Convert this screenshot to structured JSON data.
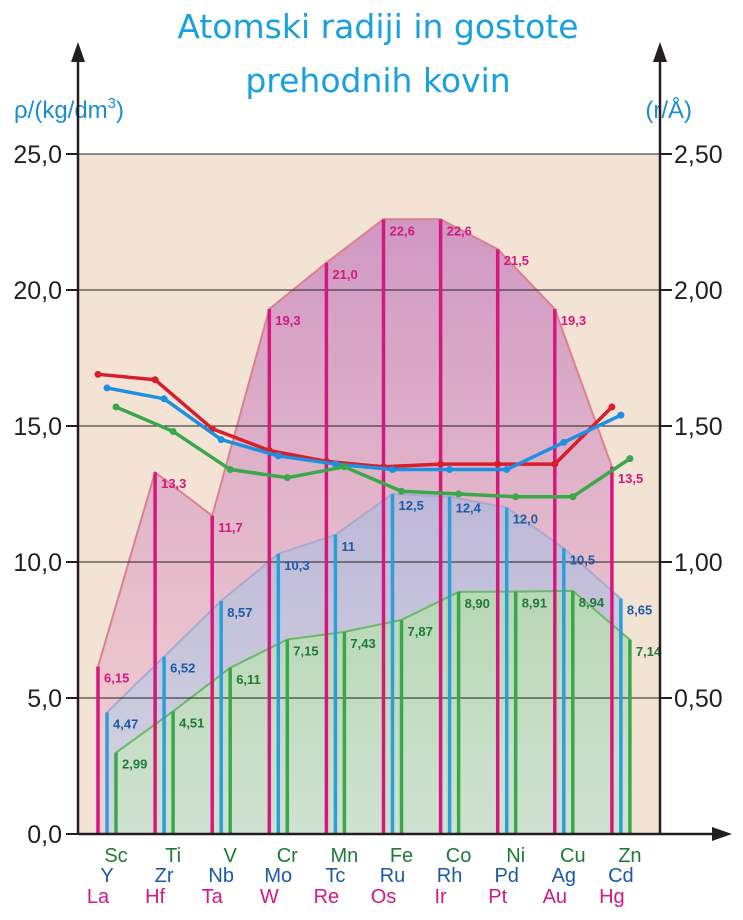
{
  "chart_data": {
    "type": "bar",
    "title_lines": [
      "Atomski radiji in gostote",
      "prehodnih kovin"
    ],
    "ylabel_left": "ρ/(kg/dm",
    "ylabel_left_sup": "3",
    "ylabel_left_close": ")",
    "ylabel_right": "(r/Å)",
    "ylim": [
      0,
      25
    ],
    "y2lim": [
      0,
      2.5
    ],
    "yticks": [
      "0,0",
      "5,0",
      "10,0",
      "15,0",
      "20,0",
      "25,0"
    ],
    "y2ticks": [
      "0,50",
      "1,00",
      "1,50",
      "2,00",
      "2,50"
    ],
    "grid": true,
    "background": "#f2e3d5",
    "colors": {
      "row1": "#1e7a36",
      "row2": "#1c5aa6",
      "row3": "#d4187e",
      "row1_bar": "#3aa84a",
      "row2_bar": "#2b9fd9",
      "row3_bar": "#d4187e",
      "radius_row1": "#3aa84a",
      "radius_row2": "#1e90e0",
      "radius_row3": "#d81e2c"
    },
    "categories_row1": [
      "Sc",
      "Ti",
      "V",
      "Cr",
      "Mn",
      "Fe",
      "Co",
      "Ni",
      "Cu",
      "Zn"
    ],
    "categories_row2": [
      "Y",
      "Zr",
      "Nb",
      "Mo",
      "Tc",
      "Ru",
      "Rh",
      "Pd",
      "Ag",
      "Cd"
    ],
    "categories_row3": [
      "La",
      "Hf",
      "Ta",
      "W",
      "Re",
      "Os",
      "Ir",
      "Pt",
      "Au",
      "Hg"
    ],
    "series": [
      {
        "key": "row3",
        "values": [
          6.15,
          13.3,
          11.7,
          19.3,
          21.0,
          22.6,
          22.6,
          21.5,
          19.3,
          13.5
        ],
        "labels": [
          "6,15",
          "13,3",
          "11,7",
          "19,3",
          "21,0",
          "22,6",
          "22,6",
          "21,5",
          "19,3",
          "13,5"
        ]
      },
      {
        "key": "row2",
        "values": [
          4.47,
          6.52,
          8.57,
          10.3,
          11,
          12.5,
          12.4,
          12.0,
          10.5,
          8.65
        ],
        "labels": [
          "4,47",
          "6,52",
          "8,57",
          "10,3",
          "11",
          "12,5",
          "12,4",
          "12,0",
          "10,5",
          "8,65"
        ]
      },
      {
        "key": "row1",
        "values": [
          2.99,
          4.51,
          6.11,
          7.15,
          7.43,
          7.87,
          8.9,
          8.91,
          8.94,
          7.14
        ],
        "labels": [
          "2,99",
          "4,51",
          "6,11",
          "7,15",
          "7,43",
          "7,87",
          "8,90",
          "8,91",
          "8,94",
          "7,14"
        ]
      }
    ],
    "radius_series": [
      {
        "key": "row3",
        "values": [
          1.69,
          1.67,
          1.49,
          1.41,
          1.37,
          1.35,
          1.36,
          1.36,
          1.36,
          1.57
        ]
      },
      {
        "key": "row2",
        "values": [
          1.64,
          1.6,
          1.45,
          1.39,
          1.36,
          1.34,
          1.34,
          1.34,
          1.44,
          1.54
        ]
      },
      {
        "key": "row1",
        "values": [
          1.57,
          1.48,
          1.34,
          1.31,
          1.35,
          1.26,
          1.25,
          1.24,
          1.24,
          1.38
        ]
      }
    ]
  }
}
